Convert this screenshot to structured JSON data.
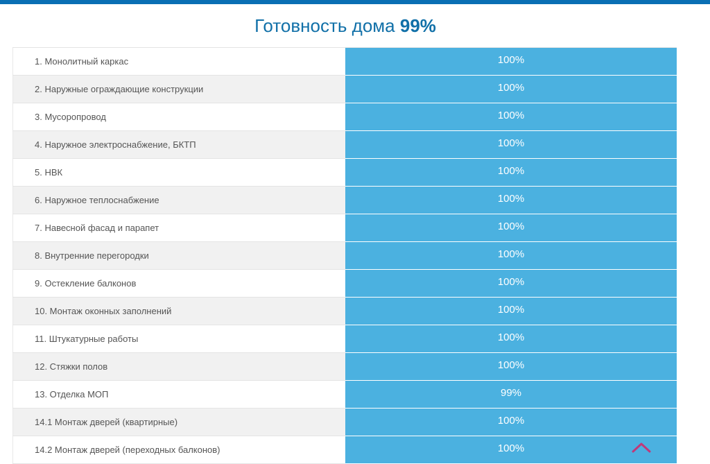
{
  "header": {
    "title_prefix": "Готовность дома",
    "title_value": "99%"
  },
  "rows": [
    {
      "name": "1. Монолитный каркас",
      "value": "100%"
    },
    {
      "name": "2. Наружные ограждающие конструкции",
      "value": "100%"
    },
    {
      "name": "3. Мусоропровод",
      "value": "100%"
    },
    {
      "name": "4. Наружное электроснабжение, БКТП",
      "value": "100%"
    },
    {
      "name": "5. НВК",
      "value": "100%"
    },
    {
      "name": "6. Наружное теплоснабжение",
      "value": "100%"
    },
    {
      "name": "7. Навесной фасад и парапет",
      "value": "100%"
    },
    {
      "name": "8. Внутренние перегородки",
      "value": "100%"
    },
    {
      "name": "9. Остекление балконов",
      "value": "100%"
    },
    {
      "name": "10. Монтаж оконных заполнений",
      "value": "100%"
    },
    {
      "name": "11. Штукатурные работы",
      "value": "100%"
    },
    {
      "name": "12. Стяжки полов",
      "value": "100%"
    },
    {
      "name": "13. Отделка МОП",
      "value": "99%"
    },
    {
      "name": "14.1 Монтаж дверей (квартирные)",
      "value": "100%"
    },
    {
      "name": "14.2 Монтаж дверей (переходных балконов)",
      "value": "100%"
    }
  ],
  "colors": {
    "top_bar": "#0a6fb4",
    "title": "#1170a8",
    "value_cell": "#4bb1e0",
    "scroll_up_icon": "#c0397a"
  },
  "icons": {
    "scroll_up": "chevron-up-icon"
  }
}
